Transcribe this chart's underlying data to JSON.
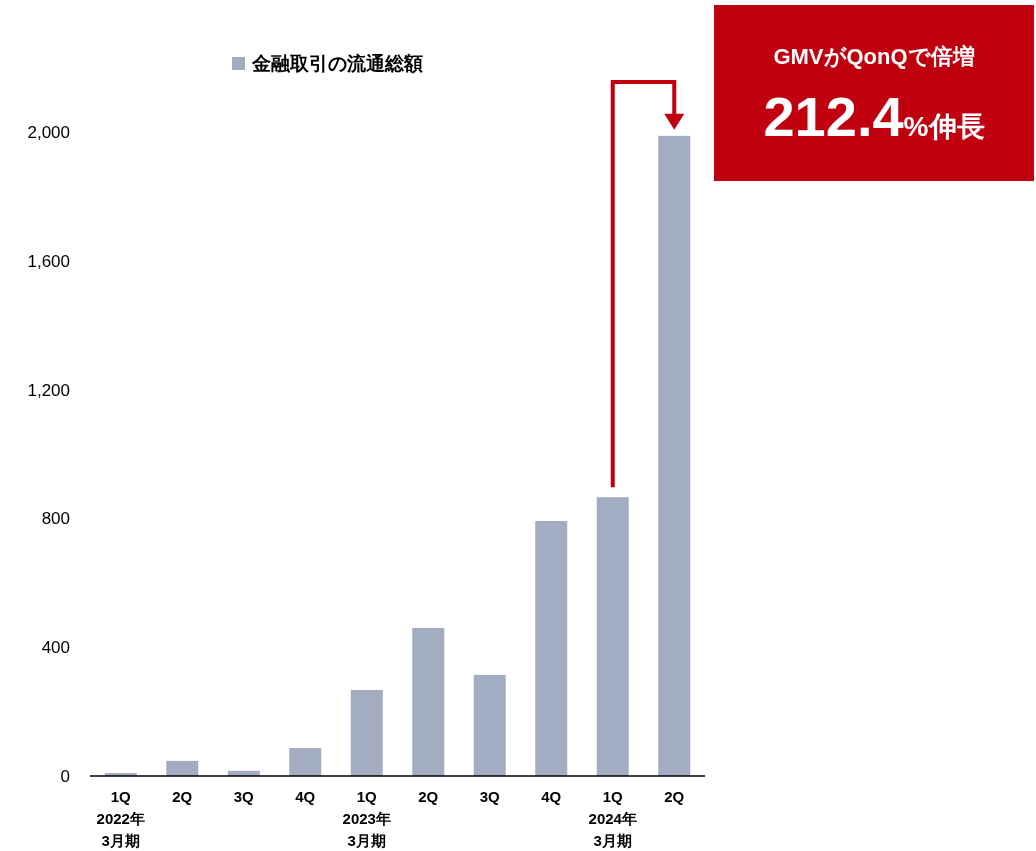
{
  "chart_data": {
    "type": "bar",
    "categories": [
      "1Q\n2022年\n3月期",
      "2Q",
      "3Q",
      "4Q",
      "1Q\n2023年\n3月期",
      "2Q",
      "3Q",
      "4Q",
      "1Q\n2024年\n3月期",
      "2Q"
    ],
    "series": [
      {
        "name": "金融取引の流通総額",
        "color": "#a3adc2",
        "values": [
          9,
          47,
          16,
          87,
          267,
          460,
          314,
          792,
          866,
          1988
        ]
      }
    ],
    "ylim": [
      0,
      2000
    ],
    "yticks": [
      {
        "value": 0,
        "label": "0"
      },
      {
        "value": 400,
        "label": "400"
      },
      {
        "value": 800,
        "label": "800"
      },
      {
        "value": 1200,
        "label": "1,200"
      },
      {
        "value": 1600,
        "label": "1,600"
      },
      {
        "value": 2000,
        "label": "2,000"
      }
    ],
    "grid": false,
    "legend": "top",
    "annotations": [
      "GMVがQonQで倍増",
      "212.4%伸長"
    ]
  }
}
